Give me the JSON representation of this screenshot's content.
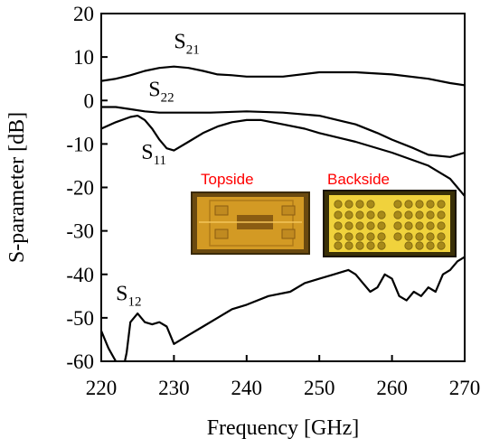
{
  "chart_data": {
    "type": "line",
    "xlabel": "Frequency [GHz]",
    "ylabel": "S-parameter [dB]",
    "xlim": [
      220,
      270
    ],
    "ylim": [
      -60,
      20
    ],
    "xticks": [
      220,
      230,
      240,
      250,
      260,
      270
    ],
    "yticks": [
      20,
      10,
      0,
      -10,
      -20,
      -30,
      -40,
      -50,
      -60
    ],
    "x_tick_labels": [
      "220",
      "230",
      "240",
      "250",
      "260",
      "270"
    ],
    "y_tick_labels": [
      "20",
      "10",
      "0",
      "-10",
      "-20",
      "-30",
      "-40",
      "-50",
      "-60"
    ],
    "grid": false,
    "series": [
      {
        "name": "S21",
        "base": "S",
        "sub": "21",
        "color": "#000000",
        "x": [
          220,
          222,
          224,
          226,
          228,
          230,
          232,
          234,
          236,
          238,
          240,
          245,
          250,
          255,
          260,
          265,
          268,
          270
        ],
        "y": [
          4.5,
          5.0,
          5.8,
          6.8,
          7.5,
          7.8,
          7.5,
          6.8,
          6.0,
          5.8,
          5.5,
          5.5,
          6.5,
          6.5,
          6.0,
          5.0,
          4.0,
          3.5
        ]
      },
      {
        "name": "S22",
        "base": "S",
        "sub": "22",
        "color": "#000000",
        "x": [
          220,
          222,
          224,
          226,
          228,
          230,
          235,
          240,
          245,
          250,
          255,
          258,
          260,
          263,
          265,
          268,
          270
        ],
        "y": [
          -1.5,
          -1.5,
          -2.0,
          -2.5,
          -2.8,
          -2.8,
          -2.8,
          -2.5,
          -2.8,
          -3.5,
          -5.5,
          -7.5,
          -9.0,
          -11.0,
          -12.5,
          -13.0,
          -12.0
        ]
      },
      {
        "name": "S11",
        "base": "S",
        "sub": "11",
        "color": "#000000",
        "x": [
          220,
          222,
          224,
          225,
          226,
          227,
          228,
          229,
          230,
          232,
          234,
          236,
          238,
          240,
          242,
          245,
          248,
          250,
          255,
          260,
          265,
          268,
          270
        ],
        "y": [
          -6.5,
          -5.0,
          -3.8,
          -3.5,
          -4.5,
          -6.5,
          -9.0,
          -11.0,
          -11.5,
          -9.5,
          -7.5,
          -6.0,
          -5.0,
          -4.5,
          -4.5,
          -5.5,
          -6.5,
          -7.5,
          -9.5,
          -12.0,
          -15.0,
          -18.0,
          -22.0
        ]
      },
      {
        "name": "S12",
        "base": "S",
        "sub": "12",
        "color": "#000000",
        "x": [
          220,
          221,
          222,
          222.5,
          223,
          223.5,
          224,
          225,
          226,
          227,
          228,
          229,
          230,
          232,
          234,
          236,
          238,
          240,
          243,
          246,
          248,
          250,
          252,
          254,
          255,
          256,
          257,
          258,
          259,
          260,
          261,
          262,
          263,
          264,
          265,
          266,
          267,
          268,
          269,
          270
        ],
        "y": [
          -53,
          -57,
          -60,
          -64,
          -62,
          -58,
          -51,
          -49,
          -51,
          -51.5,
          -51,
          -52,
          -56,
          -54,
          -52,
          -50,
          -48,
          -47,
          -45,
          -44,
          -42,
          -41,
          -40,
          -39,
          -40,
          -42,
          -44,
          -43,
          -40,
          -41,
          -45,
          -46,
          -44,
          -45,
          -43,
          -44,
          -40,
          -39,
          -37,
          -36
        ]
      }
    ]
  },
  "curve_labels": [
    {
      "base": "S",
      "sub": "21",
      "x": 230,
      "y": 12
    },
    {
      "base": "S",
      "sub": "22",
      "x": 226.5,
      "y": 1
    },
    {
      "base": "S",
      "sub": "11",
      "x": 225.5,
      "y": -13.5
    },
    {
      "base": "S",
      "sub": "12",
      "x": 222,
      "y": -46
    }
  ],
  "insets": {
    "topside": {
      "caption": "Topside",
      "fill": "#d39a24",
      "frame": "#6b4a10"
    },
    "backside": {
      "caption": "Backside",
      "fill": "#f0d23c",
      "frame": "#3a3008",
      "via": "#a88a1a"
    }
  }
}
